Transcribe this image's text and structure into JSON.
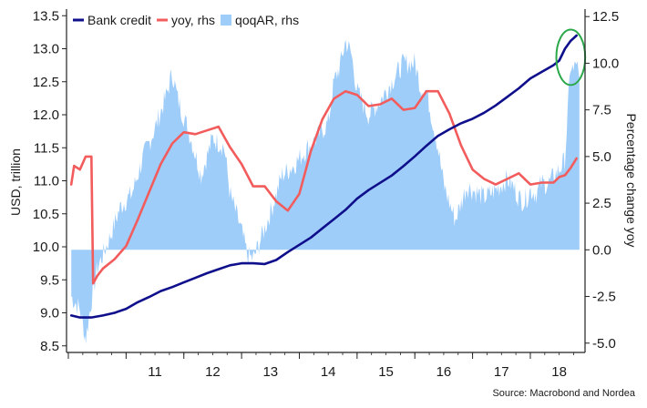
{
  "chart_data": {
    "type": "line",
    "legend": {
      "placement": "top-left",
      "entries": [
        {
          "label": "Bank credit",
          "color": "#0f0f8c",
          "kind": "line"
        },
        {
          "label": "yoy, rhs",
          "color": "#f25c5c",
          "kind": "line"
        },
        {
          "label": "qoqAR, rhs",
          "color": "#9fcdfa",
          "kind": "area"
        }
      ]
    },
    "left_axis": {
      "label": "USD, trillion",
      "range": [
        8.4,
        13.6
      ],
      "ticks": [
        "8.5",
        "9.0",
        "9.5",
        "10.0",
        "10.5",
        "11.0",
        "11.5",
        "12.0",
        "12.5",
        "13.0",
        "13.5"
      ]
    },
    "right_axis": {
      "label": "Percentage change yoy",
      "range": [
        -5.5,
        12.9
      ],
      "ticks": [
        "-5.0",
        "-2.5",
        "0.0",
        "2.5",
        "5.0",
        "7.5",
        "10.0",
        "12.5"
      ]
    },
    "x_axis": {
      "range": [
        2010.0,
        2018.9
      ],
      "tick_labels": [
        "11",
        "12",
        "13",
        "14",
        "15",
        "16",
        "17",
        "18"
      ]
    },
    "source": "Source: Macrobond and Nordea",
    "annotation": {
      "type": "ellipse",
      "color": "#2aa84a",
      "x_range": [
        2018.45,
        2018.95
      ],
      "y_center": 12.87,
      "y_halfrange": 0.42
    },
    "series": [
      {
        "name": "Bank credit",
        "axis": "left",
        "color": "#0f0f8c",
        "points": [
          [
            2010.05,
            8.96
          ],
          [
            2010.2,
            8.93
          ],
          [
            2010.4,
            8.93
          ],
          [
            2010.6,
            8.96
          ],
          [
            2010.8,
            9.0
          ],
          [
            2011.0,
            9.06
          ],
          [
            2011.2,
            9.16
          ],
          [
            2011.4,
            9.24
          ],
          [
            2011.6,
            9.33
          ],
          [
            2011.8,
            9.39
          ],
          [
            2012.0,
            9.46
          ],
          [
            2012.2,
            9.53
          ],
          [
            2012.4,
            9.6
          ],
          [
            2012.6,
            9.66
          ],
          [
            2012.8,
            9.72
          ],
          [
            2013.0,
            9.75
          ],
          [
            2013.2,
            9.75
          ],
          [
            2013.4,
            9.74
          ],
          [
            2013.6,
            9.8
          ],
          [
            2013.8,
            9.92
          ],
          [
            2014.0,
            10.03
          ],
          [
            2014.2,
            10.14
          ],
          [
            2014.4,
            10.28
          ],
          [
            2014.6,
            10.42
          ],
          [
            2014.8,
            10.56
          ],
          [
            2015.0,
            10.73
          ],
          [
            2015.2,
            10.86
          ],
          [
            2015.4,
            10.97
          ],
          [
            2015.6,
            11.08
          ],
          [
            2015.8,
            11.22
          ],
          [
            2016.0,
            11.37
          ],
          [
            2016.2,
            11.53
          ],
          [
            2016.4,
            11.68
          ],
          [
            2016.6,
            11.78
          ],
          [
            2016.8,
            11.87
          ],
          [
            2017.0,
            11.94
          ],
          [
            2017.2,
            12.03
          ],
          [
            2017.4,
            12.14
          ],
          [
            2017.6,
            12.27
          ],
          [
            2017.8,
            12.4
          ],
          [
            2018.0,
            12.55
          ],
          [
            2018.2,
            12.65
          ],
          [
            2018.4,
            12.75
          ],
          [
            2018.5,
            12.82
          ],
          [
            2018.6,
            13.0
          ],
          [
            2018.7,
            13.12
          ],
          [
            2018.8,
            13.2
          ]
        ]
      },
      {
        "name": "yoy, rhs",
        "axis": "right",
        "color": "#f25c5c",
        "points": [
          [
            2010.05,
            3.5
          ],
          [
            2010.1,
            4.5
          ],
          [
            2010.2,
            4.3
          ],
          [
            2010.3,
            5.0
          ],
          [
            2010.4,
            5.0
          ],
          [
            2010.43,
            -1.8
          ],
          [
            2010.5,
            -1.4
          ],
          [
            2010.6,
            -1.0
          ],
          [
            2010.8,
            -0.5
          ],
          [
            2011.0,
            0.2
          ],
          [
            2011.2,
            1.6
          ],
          [
            2011.4,
            3.1
          ],
          [
            2011.6,
            4.6
          ],
          [
            2011.8,
            5.7
          ],
          [
            2012.0,
            6.3
          ],
          [
            2012.2,
            6.2
          ],
          [
            2012.4,
            6.4
          ],
          [
            2012.6,
            6.6
          ],
          [
            2012.8,
            5.5
          ],
          [
            2013.0,
            4.6
          ],
          [
            2013.2,
            3.4
          ],
          [
            2013.4,
            3.4
          ],
          [
            2013.6,
            2.6
          ],
          [
            2013.8,
            2.1
          ],
          [
            2014.0,
            3.0
          ],
          [
            2014.2,
            5.3
          ],
          [
            2014.4,
            7.0
          ],
          [
            2014.6,
            8.1
          ],
          [
            2014.8,
            8.5
          ],
          [
            2015.0,
            8.3
          ],
          [
            2015.2,
            7.7
          ],
          [
            2015.4,
            7.8
          ],
          [
            2015.6,
            8.1
          ],
          [
            2015.8,
            7.5
          ],
          [
            2016.0,
            7.6
          ],
          [
            2016.2,
            8.5
          ],
          [
            2016.4,
            8.5
          ],
          [
            2016.6,
            7.3
          ],
          [
            2016.8,
            5.6
          ],
          [
            2017.0,
            4.3
          ],
          [
            2017.2,
            3.8
          ],
          [
            2017.4,
            3.5
          ],
          [
            2017.6,
            3.8
          ],
          [
            2017.8,
            4.1
          ],
          [
            2018.0,
            3.5
          ],
          [
            2018.2,
            3.6
          ],
          [
            2018.4,
            3.6
          ],
          [
            2018.5,
            3.9
          ],
          [
            2018.6,
            4.0
          ],
          [
            2018.7,
            4.4
          ],
          [
            2018.8,
            4.9
          ]
        ]
      },
      {
        "name": "qoqAR, rhs",
        "axis": "right",
        "color": "#9fcdfa",
        "type": "area",
        "points": [
          [
            2010.05,
            -2.5
          ],
          [
            2010.2,
            -3.2
          ],
          [
            2010.3,
            -4.8
          ],
          [
            2010.4,
            -2.7
          ],
          [
            2010.5,
            -1.0
          ],
          [
            2010.7,
            0.5
          ],
          [
            2010.9,
            2.3
          ],
          [
            2011.1,
            3.0
          ],
          [
            2011.3,
            5.0
          ],
          [
            2011.5,
            6.5
          ],
          [
            2011.7,
            8.3
          ],
          [
            2011.8,
            9.5
          ],
          [
            2011.9,
            8.0
          ],
          [
            2012.1,
            6.2
          ],
          [
            2012.3,
            4.0
          ],
          [
            2012.5,
            6.0
          ],
          [
            2012.7,
            5.5
          ],
          [
            2012.8,
            3.0
          ],
          [
            2013.0,
            1.0
          ],
          [
            2013.1,
            -0.3
          ],
          [
            2013.2,
            -0.5
          ],
          [
            2013.3,
            0.3
          ],
          [
            2013.5,
            2.0
          ],
          [
            2013.7,
            4.0
          ],
          [
            2013.9,
            4.5
          ],
          [
            2014.1,
            5.3
          ],
          [
            2014.3,
            6.0
          ],
          [
            2014.5,
            6.8
          ],
          [
            2014.6,
            9.0
          ],
          [
            2014.7,
            9.8
          ],
          [
            2014.8,
            11.2
          ],
          [
            2014.9,
            10.5
          ],
          [
            2015.0,
            8.5
          ],
          [
            2015.2,
            7.2
          ],
          [
            2015.4,
            8.0
          ],
          [
            2015.6,
            9.0
          ],
          [
            2015.8,
            10.0
          ],
          [
            2016.0,
            10.0
          ],
          [
            2016.1,
            8.7
          ],
          [
            2016.2,
            8.5
          ],
          [
            2016.3,
            7.0
          ],
          [
            2016.4,
            5.5
          ],
          [
            2016.5,
            3.5
          ],
          [
            2016.6,
            2.5
          ],
          [
            2016.7,
            1.6
          ],
          [
            2016.8,
            2.5
          ],
          [
            2016.9,
            3.4
          ],
          [
            2017.0,
            3.2
          ],
          [
            2017.2,
            2.8
          ],
          [
            2017.4,
            3.2
          ],
          [
            2017.6,
            3.8
          ],
          [
            2017.7,
            3.4
          ],
          [
            2017.8,
            2.8
          ],
          [
            2017.9,
            2.6
          ],
          [
            2018.0,
            3.2
          ],
          [
            2018.1,
            3.0
          ],
          [
            2018.2,
            3.6
          ],
          [
            2018.3,
            3.5
          ],
          [
            2018.4,
            3.9
          ],
          [
            2018.5,
            4.3
          ],
          [
            2018.6,
            4.8
          ],
          [
            2018.65,
            7.5
          ],
          [
            2018.7,
            10.0
          ],
          [
            2018.75,
            9.5
          ],
          [
            2018.8,
            10.2
          ],
          [
            2018.85,
            8.8
          ]
        ]
      }
    ]
  }
}
